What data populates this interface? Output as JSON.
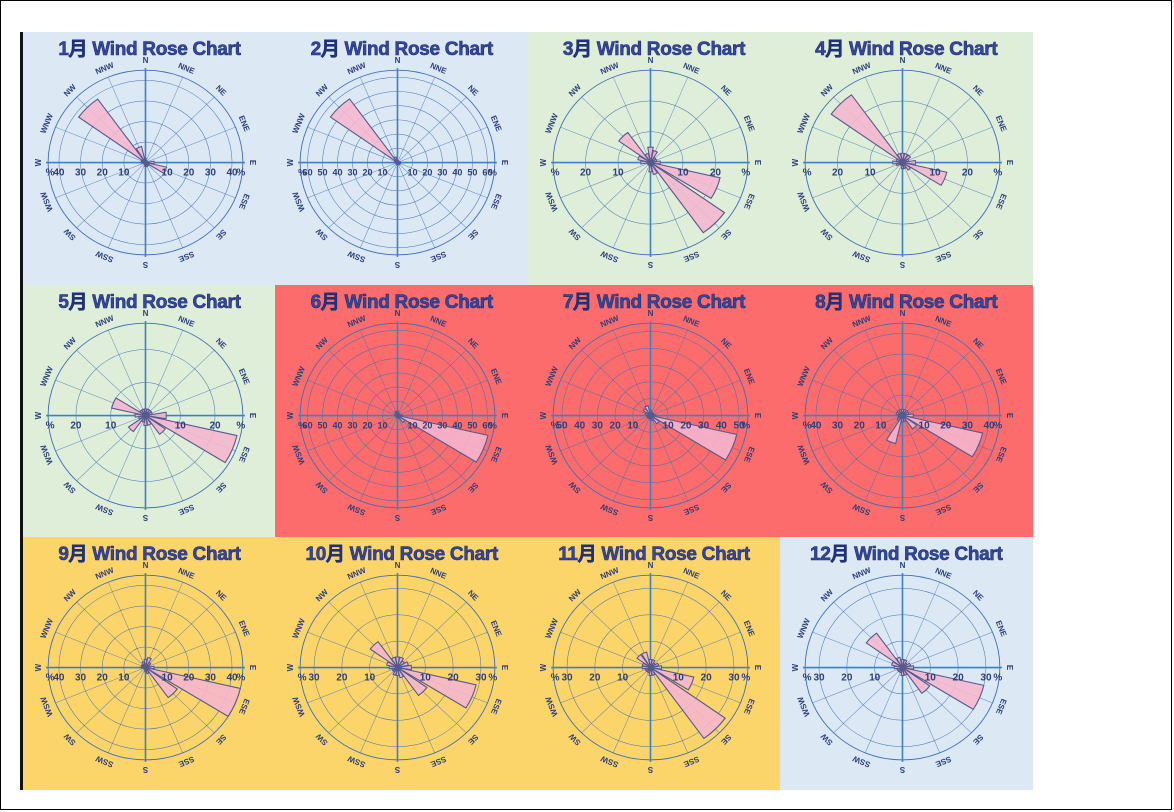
{
  "colors": {
    "winter": "#dce8f4",
    "spring": "#dfeed9",
    "summer": "#fc6c6c",
    "autumn": "#fcd56a",
    "grid": "#3d6fb8",
    "axis": "#3b82c4",
    "petal_fill": "#f6b6cf",
    "petal_stroke": "#555a8c",
    "text": "#2b3f7a"
  },
  "chart_data": [
    {
      "type": "windrose",
      "title": "1月 Wind Rose Chart",
      "season": "winter",
      "directions": [
        "N",
        "NNE",
        "NE",
        "ENE",
        "E",
        "ESE",
        "SE",
        "SSE",
        "S",
        "SSW",
        "SW",
        "WSW",
        "W",
        "WNW",
        "NW",
        "NNW"
      ],
      "values": [
        2,
        1,
        1,
        1,
        4,
        10,
        2,
        2,
        2,
        1,
        1,
        1,
        2,
        2,
        38,
        8
      ],
      "radial_ticks": [
        10,
        20,
        30,
        40
      ],
      "rmax": 45,
      "unit": "%"
    },
    {
      "type": "windrose",
      "title": "2月 Wind Rose Chart",
      "season": "winter",
      "directions": [
        "N",
        "NNE",
        "NE",
        "ENE",
        "E",
        "ESE",
        "SE",
        "SSE",
        "S",
        "SSW",
        "SW",
        "WSW",
        "W",
        "WNW",
        "NW",
        "NNW"
      ],
      "values": [
        1,
        1,
        1,
        1,
        2,
        2,
        2,
        1,
        1,
        1,
        1,
        1,
        1,
        2,
        55,
        4
      ],
      "radial_ticks": [
        10,
        20,
        30,
        40,
        50,
        60
      ],
      "rmax": 65,
      "unit": "%"
    },
    {
      "type": "windrose",
      "title": "3月 Wind Rose Chart",
      "season": "spring",
      "directions": [
        "N",
        "NNE",
        "NE",
        "ENE",
        "E",
        "ESE",
        "SE",
        "SSE",
        "S",
        "SSW",
        "SW",
        "WSW",
        "W",
        "WNW",
        "NW",
        "NNW"
      ],
      "values": [
        5,
        4,
        2,
        2,
        3,
        22,
        28,
        4,
        3,
        1,
        1,
        1,
        3,
        4,
        12,
        3
      ],
      "radial_ticks": [
        10,
        20
      ],
      "rmax": 30,
      "unit": "%"
    },
    {
      "type": "windrose",
      "title": "4月 Wind Rose Chart",
      "season": "spring",
      "directions": [
        "N",
        "NNE",
        "NE",
        "ENE",
        "E",
        "ESE",
        "SE",
        "SSE",
        "S",
        "SSW",
        "SW",
        "WSW",
        "W",
        "WNW",
        "NW",
        "NNW"
      ],
      "values": [
        3,
        3,
        3,
        2,
        4,
        14,
        3,
        2,
        2,
        1,
        1,
        2,
        3,
        2,
        27,
        3
      ],
      "radial_ticks": [
        10,
        20
      ],
      "rmax": 30,
      "unit": "%"
    },
    {
      "type": "windrose",
      "title": "5月 Wind Rose Chart",
      "season": "spring",
      "directions": [
        "N",
        "NNE",
        "NE",
        "ENE",
        "E",
        "ESE",
        "SE",
        "SSE",
        "S",
        "SSW",
        "SW",
        "WSW",
        "W",
        "WNW",
        "NW",
        "NNW"
      ],
      "values": [
        2,
        2,
        2,
        2,
        6,
        27,
        7,
        3,
        3,
        2,
        6,
        2,
        3,
        10,
        2,
        2
      ],
      "radial_ticks": [
        10,
        20
      ],
      "rmax": 28,
      "unit": "%"
    },
    {
      "type": "windrose",
      "title": "6月 Wind Rose Chart",
      "season": "summer",
      "directions": [
        "N",
        "NNE",
        "NE",
        "ENE",
        "E",
        "ESE",
        "SE",
        "SSE",
        "S",
        "SSW",
        "SW",
        "WSW",
        "W",
        "WNW",
        "NW",
        "NNW"
      ],
      "values": [
        3,
        2,
        1,
        1,
        3,
        62,
        6,
        2,
        1,
        1,
        1,
        1,
        1,
        2,
        2,
        3
      ],
      "radial_ticks": [
        10,
        20,
        30,
        40,
        50,
        60
      ],
      "rmax": 65,
      "unit": "%"
    },
    {
      "type": "windrose",
      "title": "7月 Wind Rose Chart",
      "season": "summer",
      "directions": [
        "N",
        "NNE",
        "NE",
        "ENE",
        "E",
        "ESE",
        "SE",
        "SSE",
        "S",
        "SSW",
        "SW",
        "WSW",
        "W",
        "WNW",
        "NW",
        "NNW"
      ],
      "values": [
        3,
        2,
        2,
        2,
        3,
        50,
        6,
        3,
        2,
        2,
        2,
        2,
        2,
        3,
        5,
        6
      ],
      "radial_ticks": [
        10,
        20,
        30,
        40,
        50
      ],
      "rmax": 55,
      "unit": "%"
    },
    {
      "type": "windrose",
      "title": "8月 Wind Rose Chart",
      "season": "summer",
      "directions": [
        "N",
        "NNE",
        "NE",
        "ENE",
        "E",
        "ESE",
        "SE",
        "SSE",
        "S",
        "SSW",
        "SW",
        "WSW",
        "W",
        "WNW",
        "NW",
        "NNW"
      ],
      "values": [
        3,
        3,
        3,
        3,
        5,
        38,
        8,
        3,
        3,
        14,
        3,
        2,
        2,
        3,
        3,
        3
      ],
      "radial_ticks": [
        10,
        20,
        30,
        40
      ],
      "rmax": 45,
      "unit": "%"
    },
    {
      "type": "windrose",
      "title": "9月 Wind Rose Chart",
      "season": "autumn",
      "directions": [
        "N",
        "NNE",
        "NE",
        "ENE",
        "E",
        "ESE",
        "SE",
        "SSE",
        "S",
        "SSW",
        "SW",
        "WSW",
        "W",
        "WNW",
        "NW",
        "NNW"
      ],
      "values": [
        4,
        5,
        3,
        2,
        4,
        45,
        18,
        3,
        2,
        1,
        1,
        1,
        2,
        2,
        2,
        3
      ],
      "radial_ticks": [
        10,
        20,
        30,
        40
      ],
      "rmax": 45,
      "unit": "%"
    },
    {
      "type": "windrose",
      "title": "10月 Wind Rose Chart",
      "season": "autumn",
      "directions": [
        "N",
        "NNE",
        "NE",
        "ENE",
        "E",
        "ESE",
        "SE",
        "SSE",
        "S",
        "SSW",
        "SW",
        "WSW",
        "W",
        "WNW",
        "NW",
        "NNW"
      ],
      "values": [
        4,
        4,
        3,
        4,
        5,
        29,
        13,
        4,
        3,
        3,
        2,
        2,
        3,
        4,
        12,
        4
      ],
      "radial_ticks": [
        10,
        20,
        30
      ],
      "rmax": 35,
      "unit": "%"
    },
    {
      "type": "windrose",
      "title": "11月 Wind Rose Chart",
      "season": "autumn",
      "directions": [
        "N",
        "NNE",
        "NE",
        "ENE",
        "E",
        "ESE",
        "SE",
        "SSE",
        "S",
        "SSW",
        "SW",
        "WSW",
        "W",
        "WNW",
        "NW",
        "NNW"
      ],
      "values": [
        3,
        3,
        2,
        3,
        4,
        16,
        33,
        3,
        3,
        2,
        2,
        2,
        3,
        3,
        6,
        6
      ],
      "radial_ticks": [
        10,
        20,
        30
      ],
      "rmax": 35,
      "unit": "%"
    },
    {
      "type": "windrose",
      "title": "12月 Wind Rose Chart",
      "season": "winter",
      "directions": [
        "N",
        "NNE",
        "NE",
        "ENE",
        "E",
        "ESE",
        "SE",
        "SSE",
        "S",
        "SSW",
        "SW",
        "WSW",
        "W",
        "WNW",
        "NW",
        "NNW"
      ],
      "values": [
        3,
        3,
        2,
        3,
        4,
        30,
        12,
        3,
        3,
        2,
        2,
        2,
        3,
        4,
        16,
        4
      ],
      "radial_ticks": [
        10,
        20,
        30
      ],
      "rmax": 35,
      "unit": "%"
    }
  ]
}
